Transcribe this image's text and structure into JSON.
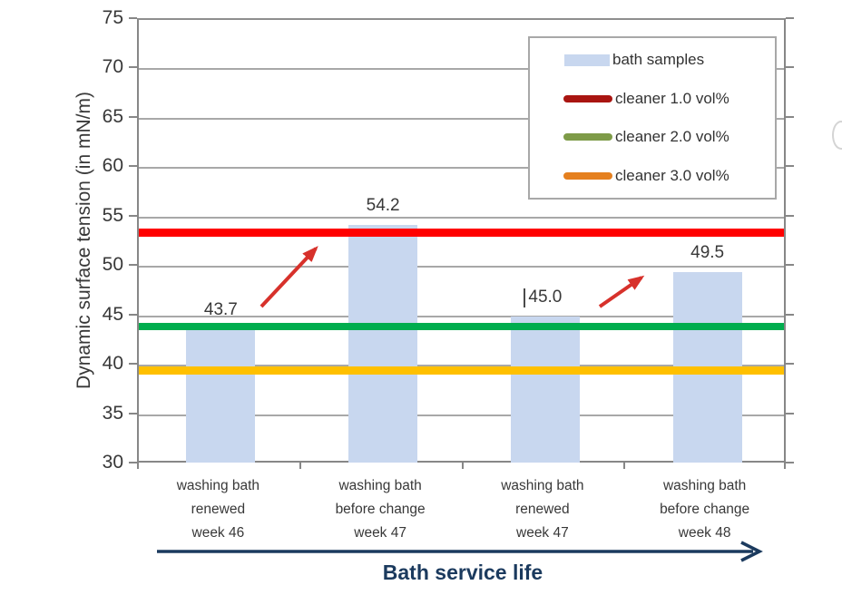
{
  "chart_data": {
    "type": "bar",
    "title": "",
    "ylabel": "Dynamic surface tension (in mN/m)",
    "xlabel": "Bath service life",
    "ylim": [
      30,
      75
    ],
    "ytick_step": 5,
    "yticks": [
      75,
      70,
      65,
      60,
      55,
      50,
      45,
      40,
      35,
      30
    ],
    "grid": "horizontal-on",
    "categories": [
      "washing bath\nrenewed\nweek 46",
      "washing bath\nbefore change\nweek 47",
      "washing bath\nrenewed\nweek 47",
      "washing bath\nbefore change\nweek 48"
    ],
    "values": [
      43.7,
      54.2,
      45.0,
      49.5
    ],
    "bar_labels": [
      "43.7",
      "54.2",
      "45.0",
      "49.5"
    ],
    "bar_color": "#c8d7ef",
    "reference_lines": [
      {
        "name": "cleaner 1.0 vol%",
        "value": 53.5,
        "line_color": "#ff0000",
        "thickness": 9
      },
      {
        "name": "cleaner 2.0 vol%",
        "value": 44.0,
        "line_color": "#00ad4e",
        "thickness": 8
      },
      {
        "name": "cleaner 3.0 vol%",
        "value": 39.5,
        "line_color": "#ffc000",
        "thickness": 9
      }
    ],
    "legend": {
      "position": "top-right-inside",
      "items": [
        {
          "label": "bath samples",
          "swatch": "rect",
          "color": "#c8d7ef"
        },
        {
          "label": "cleaner 1.0 vol%",
          "swatch": "line",
          "color": "#a91511"
        },
        {
          "label": "cleaner 2.0 vol%",
          "swatch": "line",
          "color": "#7e9b48"
        },
        {
          "label": "cleaner 3.0 vol%",
          "swatch": "line",
          "color": "#e5801f"
        }
      ]
    },
    "annotations": [
      {
        "type": "arrow",
        "color": "#d7312b",
        "meaning": "rise toward cleaner 1.0 vol% line between bar 1 and bar 2"
      },
      {
        "type": "arrow",
        "color": "#d7312b",
        "meaning": "rise between bar 3 and bar 4"
      }
    ],
    "colors": {
      "axis": "#878787",
      "grid": "#a8a8a8",
      "text": "#383838",
      "x_axis_title": "#1b3a5e"
    }
  }
}
